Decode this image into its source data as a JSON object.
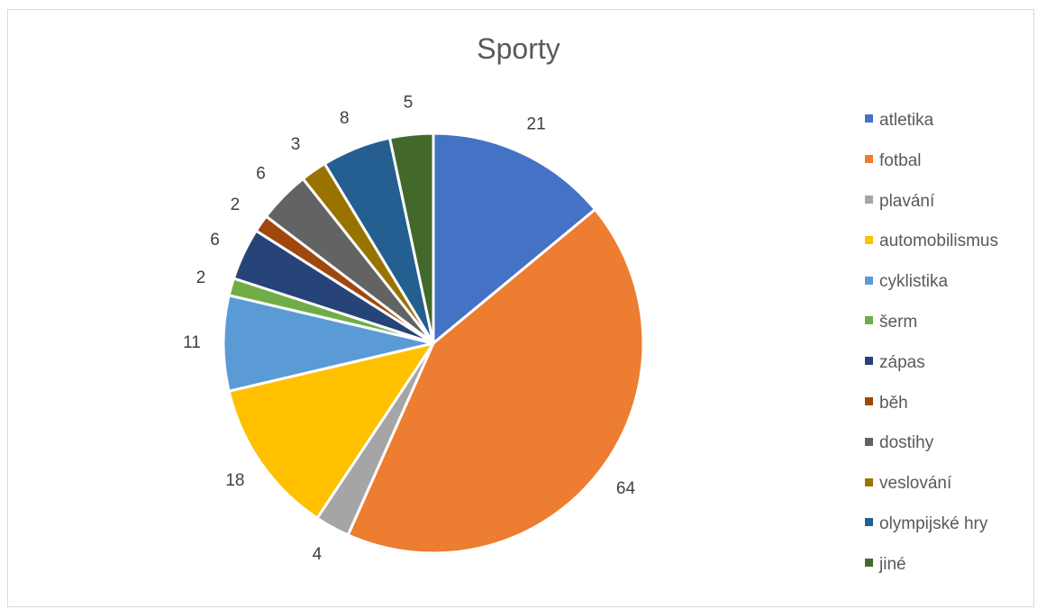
{
  "chart_data": {
    "type": "pie",
    "title": "Sporty",
    "legend_position": "right",
    "categories": [
      "atletika",
      "fotbal",
      "plavání",
      "automobilismus",
      "cyklistika",
      "šerm",
      "zápas",
      "běh",
      "dostihy",
      "veslování",
      "olympijské hry",
      "jiné"
    ],
    "values": [
      21,
      64,
      4,
      18,
      11,
      2,
      6,
      2,
      6,
      3,
      8,
      5
    ],
    "colors": [
      "#4472C4",
      "#ED7D31",
      "#A5A5A5",
      "#FFC000",
      "#5B9BD5",
      "#70AD47",
      "#264478",
      "#9E480E",
      "#636363",
      "#997300",
      "#255E91",
      "#43682B"
    ]
  }
}
